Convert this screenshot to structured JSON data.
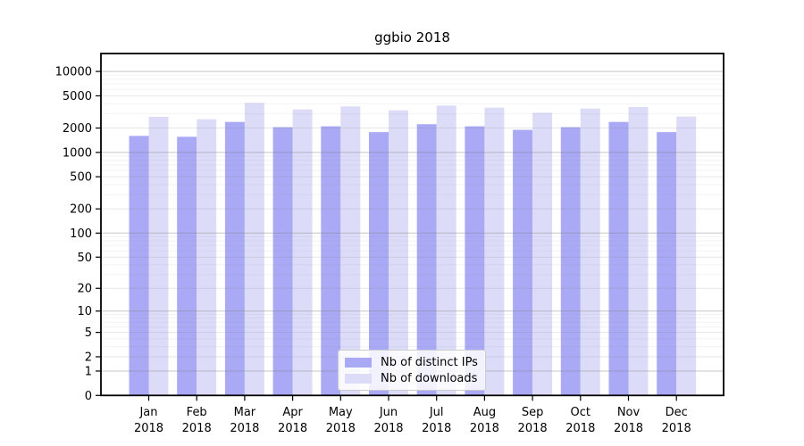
{
  "chart_data": {
    "type": "bar",
    "title": "ggbio 2018",
    "categories": [
      "Jan 2018",
      "Feb 2018",
      "Mar 2018",
      "Apr 2018",
      "May 2018",
      "Jun 2018",
      "Jul 2018",
      "Aug 2018",
      "Sep 2018",
      "Oct 2018",
      "Nov 2018",
      "Dec 2018"
    ],
    "series": [
      {
        "name": "Nb of distinct IPs",
        "color": "#a9a9f6",
        "values": [
          1600,
          1560,
          2380,
          2050,
          2100,
          1780,
          2230,
          2100,
          1900,
          2050,
          2380,
          1780
        ]
      },
      {
        "name": "Nb of downloads",
        "color": "#dcdcf9",
        "values": [
          2750,
          2570,
          4100,
          3400,
          3700,
          3310,
          3790,
          3570,
          3090,
          3480,
          3640,
          2770
        ]
      }
    ],
    "xlabel": "",
    "ylabel": "",
    "y_axis": {
      "scale": "log1p",
      "tick_labels": [
        "10000",
        "5000",
        "2000",
        "1000",
        "500",
        "200",
        "100",
        "50",
        "20",
        "10",
        "5",
        "2",
        "1",
        "0"
      ],
      "tick_values": [
        10000,
        5000,
        2000,
        1000,
        500,
        200,
        100,
        50,
        20,
        10,
        5,
        2,
        1,
        0
      ],
      "ylim": [
        0,
        16600
      ]
    },
    "grid": "on",
    "legend_position": "inside-bottom-center",
    "colors": {
      "bar_dark": "#a9a9f6",
      "bar_light": "#dcdcf9",
      "grid_major": "#c2c2c2",
      "grid_labeled": "#e5e5e5",
      "grid_minor": "#f2f2f2",
      "frame": "#000000",
      "text": "#000000"
    }
  }
}
